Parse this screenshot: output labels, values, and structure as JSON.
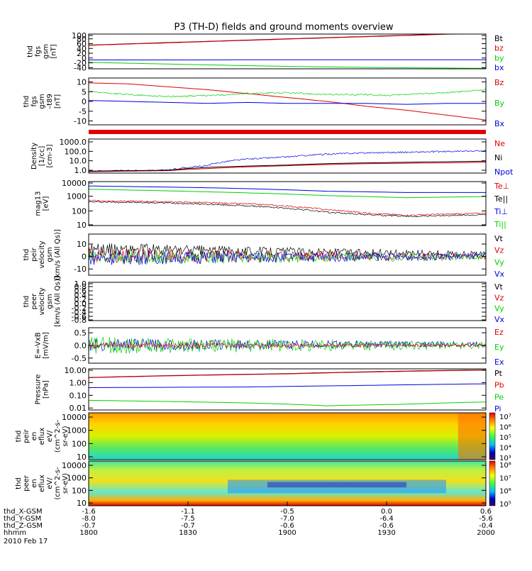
{
  "title": "P3 (TH-D) fields and ground moments overview",
  "colors": {
    "black": "#000000",
    "red": "#e00000",
    "green": "#00d000",
    "blue": "#0000e0"
  },
  "chart_data": [
    {
      "id": "p1",
      "type": "line",
      "ylabel": [
        "thd",
        "fgs",
        "gsm",
        "[nT]"
      ],
      "yticks": [
        100,
        80,
        60,
        40,
        20,
        0,
        -20,
        -40
      ],
      "ylim": [
        -45,
        100
      ],
      "legend": [
        [
          "Bt",
          "black"
        ],
        [
          "bz",
          "red"
        ],
        [
          "by",
          "green"
        ],
        [
          "bx",
          "blue"
        ]
      ],
      "series": [
        {
          "name": "Bt",
          "color": "black",
          "x": [
            0,
            0.5,
            1
          ],
          "y": [
            54,
            80,
            105
          ]
        },
        {
          "name": "bz",
          "color": "red",
          "x": [
            0,
            0.5,
            1
          ],
          "y": [
            53,
            79,
            104
          ]
        },
        {
          "name": "by",
          "color": "green",
          "x": [
            0,
            0.25,
            0.5,
            0.75,
            1
          ],
          "y": [
            -18,
            -27,
            -35,
            -40,
            -43
          ]
        },
        {
          "name": "bx",
          "color": "blue",
          "x": [
            0,
            0.25,
            0.5,
            0.75,
            1
          ],
          "y": [
            -8,
            -8,
            -7,
            -7,
            -7
          ]
        }
      ]
    },
    {
      "id": "p2",
      "type": "line",
      "ylabel": [
        "thd",
        "fgs",
        "gsm",
        "–t89",
        "[nT]"
      ],
      "yticks": [
        10,
        5,
        0,
        -5,
        -10
      ],
      "ylim": [
        -12,
        12
      ],
      "legend": [
        [
          "Bz",
          "red"
        ],
        [
          "By",
          "green"
        ],
        [
          "Bx",
          "blue"
        ]
      ],
      "series": [
        {
          "name": "Bz",
          "color": "red",
          "x": [
            0,
            0.1,
            0.2,
            0.3,
            0.4,
            0.5,
            0.6,
            0.7,
            0.8,
            0.9,
            1
          ],
          "y": [
            9.5,
            9,
            7.5,
            6,
            4,
            2,
            0,
            -2.5,
            -4.5,
            -7,
            -9.5
          ]
        },
        {
          "name": "By",
          "color": "green",
          "x": [
            0,
            0.1,
            0.2,
            0.3,
            0.4,
            0.5,
            0.6,
            0.7,
            0.75,
            0.8,
            0.9,
            1
          ],
          "y": [
            5,
            3.5,
            2.5,
            3,
            4,
            4.5,
            3.5,
            3.5,
            3,
            3.5,
            4.5,
            6
          ]
        },
        {
          "name": "Bx",
          "color": "blue",
          "x": [
            0,
            0.1,
            0.2,
            0.3,
            0.4,
            0.5,
            0.6,
            0.7,
            0.8,
            0.9,
            1
          ],
          "y": [
            0.5,
            0,
            -0.5,
            -1,
            -0.5,
            -1,
            -1,
            -1,
            -1.5,
            -1,
            -1
          ]
        }
      ]
    },
    {
      "id": "p3",
      "type": "line",
      "scale": "log",
      "ylabel": [
        "Density",
        "[1/cc]",
        "[cm-3]"
      ],
      "yticks": [
        "1000.0",
        "100.0",
        "10.0",
        "1.0"
      ],
      "ylim": [
        0.5,
        2000
      ],
      "legend": [
        [
          "Ne",
          "red"
        ],
        [
          "Ni",
          "black"
        ],
        [
          "Npot",
          "blue"
        ]
      ],
      "series": [
        {
          "name": "Npot",
          "color": "blue",
          "x": [
            0,
            0.2,
            0.3,
            0.4,
            0.5,
            0.6,
            0.7,
            0.8,
            0.9,
            1
          ],
          "y": [
            0.8,
            1,
            3,
            15,
            25,
            50,
            70,
            80,
            95,
            110
          ]
        },
        {
          "name": "Ne",
          "color": "red",
          "x": [
            0,
            0.2,
            0.3,
            0.5,
            0.6,
            0.7,
            0.8,
            0.9,
            1
          ],
          "y": [
            0.7,
            0.9,
            1.5,
            3,
            4,
            5,
            5.5,
            6,
            7
          ]
        },
        {
          "name": "Ni",
          "color": "black",
          "x": [
            0,
            0.2,
            0.3,
            0.5,
            0.6,
            0.7,
            0.8,
            0.9,
            1
          ],
          "y": [
            0.8,
            1,
            2,
            3.5,
            5,
            6,
            7,
            8,
            9
          ]
        }
      ]
    },
    {
      "id": "p4",
      "type": "line",
      "scale": "log",
      "ylabel": [
        "mag13",
        "[eV]"
      ],
      "yticks": [
        "10000",
        "1000",
        "100",
        "10"
      ],
      "ylim": [
        10,
        10000
      ],
      "legend": [
        [
          "Te⊥",
          "red"
        ],
        [
          "Te||",
          "black"
        ],
        [
          "Ti⊥",
          "blue"
        ],
        [
          "Ti||",
          "green"
        ]
      ],
      "series": [
        {
          "name": "Ti⊥",
          "color": "blue",
          "x": [
            0,
            0.3,
            0.6,
            0.8,
            1
          ],
          "y": [
            5000,
            3800,
            2200,
            1800,
            1800
          ]
        },
        {
          "name": "Ti||",
          "color": "green",
          "x": [
            0,
            0.3,
            0.6,
            0.8,
            1
          ],
          "y": [
            3000,
            2000,
            1100,
            800,
            950
          ]
        },
        {
          "name": "Te⊥",
          "color": "red",
          "x": [
            0,
            0.2,
            0.4,
            0.6,
            0.7,
            0.8,
            1
          ],
          "y": [
            500,
            420,
            300,
            120,
            70,
            50,
            70
          ]
        },
        {
          "name": "Te||",
          "color": "black",
          "x": [
            0,
            0.2,
            0.4,
            0.6,
            0.7,
            0.8,
            1
          ],
          "y": [
            420,
            350,
            220,
            80,
            55,
            42,
            55
          ]
        }
      ]
    },
    {
      "id": "p5",
      "type": "line",
      "ylabel": [
        "thd",
        "peir",
        "velocity",
        "gsm",
        "[km/s (All Qs)]"
      ],
      "yticks": [
        10,
        0,
        -10
      ],
      "ylim": [
        -15,
        18
      ],
      "legend": [
        [
          "Vt",
          "black"
        ],
        [
          "Vz",
          "red"
        ],
        [
          "Vy",
          "green"
        ],
        [
          "Vx",
          "blue"
        ]
      ],
      "series": [
        {
          "name": "Vt",
          "color": "black",
          "x": [
            0,
            1
          ],
          "y": [
            6,
            2
          ]
        },
        {
          "name": "Vz",
          "color": "red",
          "x": [
            0,
            1
          ],
          "y": [
            0.5,
            0
          ]
        },
        {
          "name": "Vy",
          "color": "green",
          "x": [
            0,
            1
          ],
          "y": [
            -1,
            -0.5
          ]
        },
        {
          "name": "Vx",
          "color": "blue",
          "x": [
            0,
            1
          ],
          "y": [
            -1,
            0
          ]
        }
      ]
    },
    {
      "id": "p6",
      "type": "line",
      "ylabel": [
        "thd",
        "peer",
        "velocity",
        "gsm",
        "[km/s (All Qs)]"
      ],
      "yticks": [
        "1.0",
        "0.8",
        "0.6",
        "0.4",
        "0.2",
        "0.0",
        "-0.2",
        "-0.4",
        "-0.6",
        "-0.8"
      ],
      "ylim": [
        -0.8,
        1.0
      ],
      "legend": [
        [
          "Vt",
          "black"
        ],
        [
          "Vz",
          "red"
        ],
        [
          "Vy",
          "green"
        ],
        [
          "Vx",
          "blue"
        ]
      ],
      "series": []
    },
    {
      "id": "p7",
      "type": "line",
      "ylabel": [
        "E=-VxB",
        "[mV/m]"
      ],
      "yticks": [
        "0.5",
        "0.0",
        "-0.5"
      ],
      "ylim": [
        -0.7,
        0.7
      ],
      "legend": [
        [
          "Ez",
          "red"
        ],
        [
          "Ey",
          "green"
        ],
        [
          "Ex",
          "blue"
        ]
      ],
      "series": [
        {
          "name": "Ex",
          "color": "blue",
          "x": [
            0,
            1
          ],
          "y": [
            0.02,
            0.05
          ]
        },
        {
          "name": "Ey",
          "color": "green",
          "x": [
            0,
            1
          ],
          "y": [
            0,
            0
          ]
        },
        {
          "name": "Ez",
          "color": "red",
          "x": [
            0,
            1
          ],
          "y": [
            0,
            0
          ]
        }
      ]
    },
    {
      "id": "p8",
      "type": "line",
      "scale": "log",
      "ylabel": [
        "Pressure",
        "[nPa]"
      ],
      "yticks": [
        "10.00",
        "1.00",
        "0.10",
        "0.01"
      ],
      "ylim": [
        0.007,
        12
      ],
      "legend": [
        [
          "Pt",
          "black"
        ],
        [
          "Pb",
          "red"
        ],
        [
          "Pe",
          "green"
        ],
        [
          "Pi",
          "blue"
        ]
      ],
      "series": [
        {
          "name": "Pt",
          "color": "black",
          "x": [
            0,
            0.5,
            1
          ],
          "y": [
            2.5,
            5,
            10
          ]
        },
        {
          "name": "Pb",
          "color": "red",
          "x": [
            0,
            0.5,
            1
          ],
          "y": [
            2.4,
            4.8,
            9.5
          ]
        },
        {
          "name": "Pi",
          "color": "blue",
          "x": [
            0,
            0.4,
            0.7,
            1
          ],
          "y": [
            0.4,
            0.45,
            0.6,
            0.8
          ]
        },
        {
          "name": "Pe",
          "color": "green",
          "x": [
            0,
            0.4,
            0.6,
            0.8,
            1
          ],
          "y": [
            0.04,
            0.025,
            0.015,
            0.02,
            0.03
          ]
        }
      ]
    },
    {
      "id": "p9",
      "type": "heatmap",
      "ylabel": [
        "thd",
        "peir",
        "en",
        "eflux",
        "eV/",
        "(cm^2-s-",
        "sr-eV)"
      ],
      "yticks": [
        "10000",
        "1000",
        "100",
        "10"
      ],
      "colorbar": [
        "10⁷",
        "10⁶",
        "10⁵",
        "10⁴",
        "10³"
      ]
    },
    {
      "id": "p10",
      "type": "heatmap",
      "ylabel": [
        "thd",
        "peer",
        "en",
        "eflux",
        "eV/",
        "(cm^2-s-",
        "sr-eV)"
      ],
      "yticks": [
        "10000",
        "1000",
        "100",
        "10"
      ],
      "colorbar": [
        "10⁸",
        "10⁷",
        "10⁶",
        "10⁵"
      ]
    }
  ],
  "xaxis": {
    "rows": [
      {
        "label": "thd_X-GSM",
        "values": [
          "-1.6",
          "-1.1",
          "-0.5",
          "0.0",
          "0.6"
        ]
      },
      {
        "label": "thd_Y-GSM",
        "values": [
          "-8.0",
          "-7.5",
          "-7.0",
          "-6.4",
          "-5.6"
        ]
      },
      {
        "label": "thd_Z-GSM",
        "values": [
          "-0.7",
          "-0.7",
          "-0.6",
          "-0.6",
          "-0.4"
        ]
      },
      {
        "label": "hhmm",
        "values": [
          "1800",
          "1830",
          "1900",
          "1930",
          "2000"
        ]
      }
    ],
    "date": "2010 Feb 17"
  }
}
